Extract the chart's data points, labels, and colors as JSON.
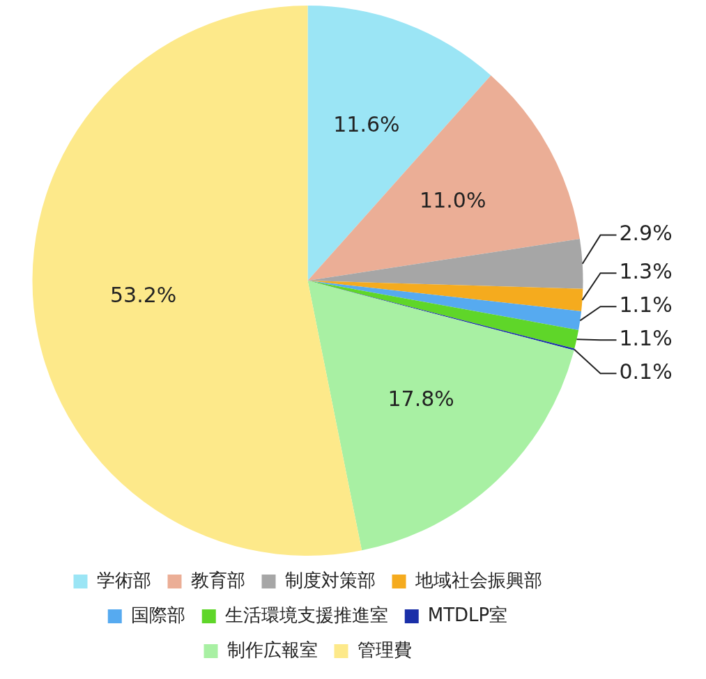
{
  "chart_data": {
    "type": "pie",
    "categories": [
      "学術部",
      "教育部",
      "制度対策部",
      "地域社会振興部",
      "国際部",
      "生活環境支援推進室",
      "MTDLP室",
      "制作広報室",
      "管理費"
    ],
    "values": [
      11.6,
      11.0,
      2.9,
      1.3,
      1.1,
      1.1,
      0.1,
      17.8,
      53.2
    ],
    "value_labels": [
      "11.6%",
      "11.0%",
      "2.9%",
      "1.3%",
      "1.1%",
      "1.1%",
      "0.1%",
      "17.8%",
      "53.2%"
    ],
    "colors": [
      "#9be5f5",
      "#ebae96",
      "#a6a6a6",
      "#f5ab1e",
      "#56aaf0",
      "#5fd629",
      "#1a2fa8",
      "#a8f0a3",
      "#fde98a"
    ],
    "legend": "bottom"
  }
}
